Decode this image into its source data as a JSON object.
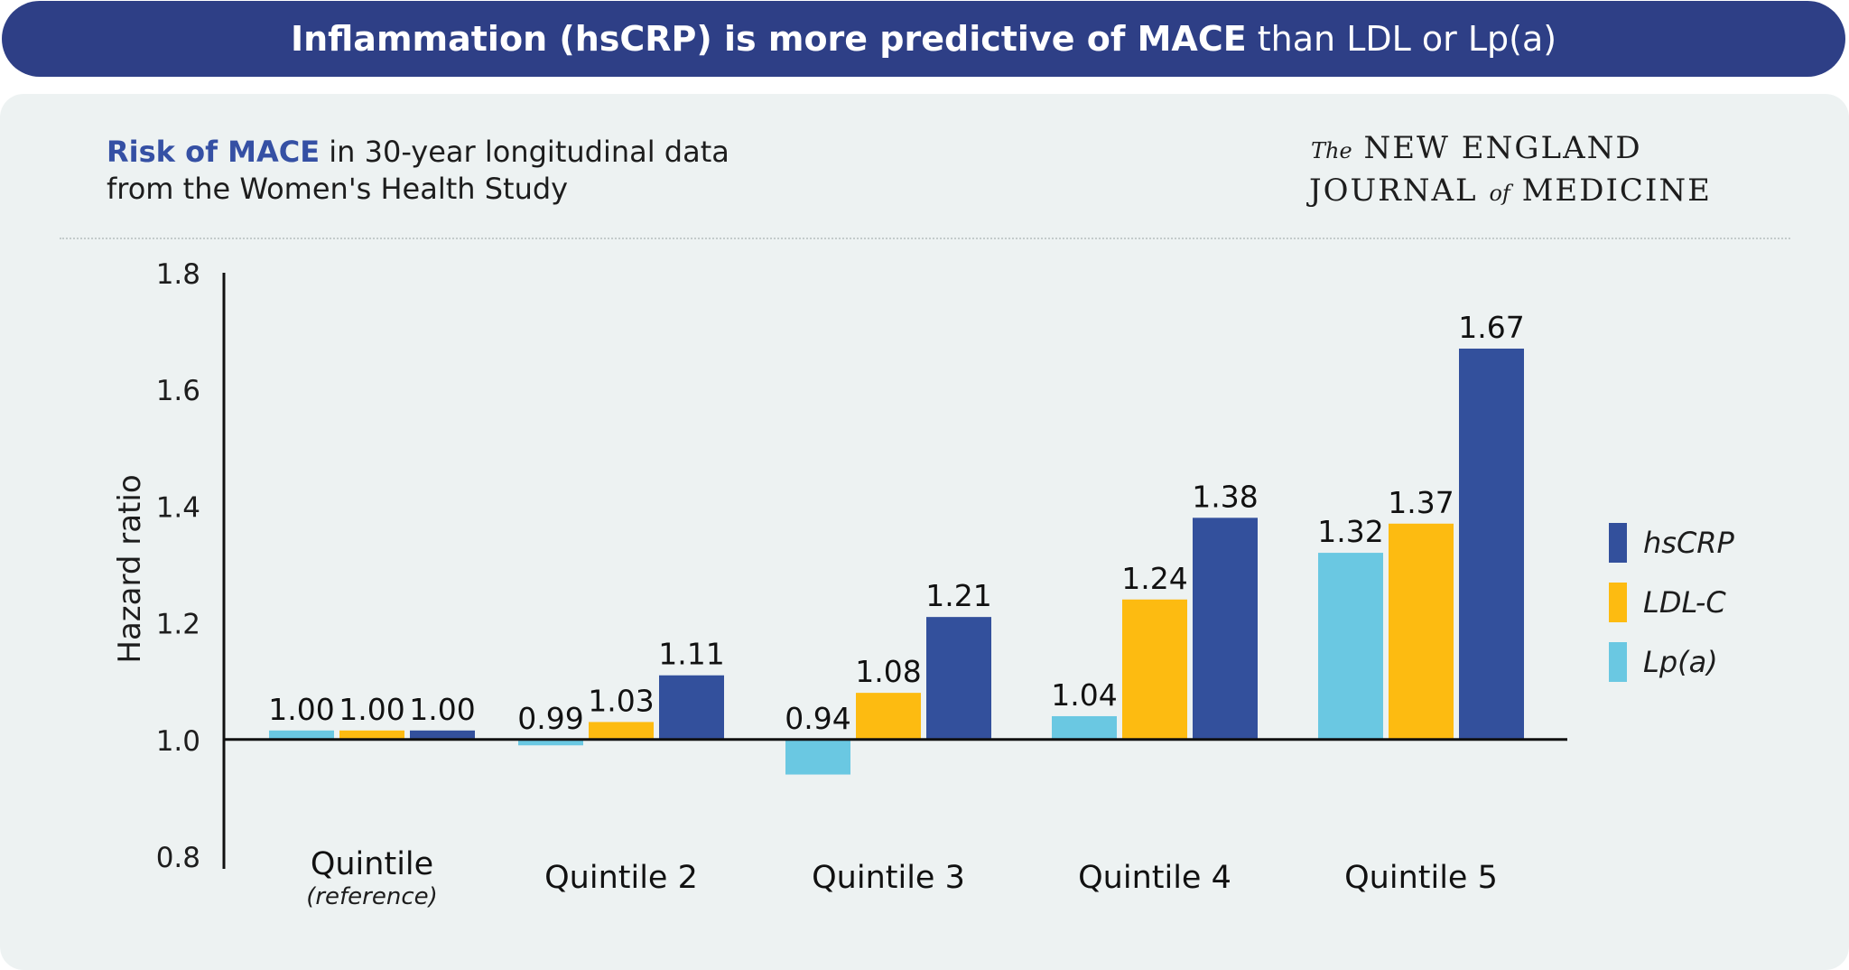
{
  "header": {
    "title_bold": "Inflammation (hsCRP) is more predictive of MACE",
    "title_light": "than LDL or Lp(a)"
  },
  "subtitle": {
    "accent": "Risk of MACE",
    "rest_line1": " in 30-year longitudinal data",
    "line2": "from the Women's Health Study"
  },
  "journal": {
    "the": "The",
    "line1": "NEW ENGLAND",
    "line2_a": "JOURNAL",
    "of": "of",
    "line2_b": "MEDICINE"
  },
  "colors": {
    "hsCRP": "#33509c",
    "LDL-C": "#fdbb11",
    "Lp(a)": "#6ac8e2"
  },
  "chart_data": {
    "type": "bar",
    "ylabel": "Hazard ratio",
    "ylim": [
      0.8,
      1.8
    ],
    "yticks": [
      "0.8",
      "1.0",
      "1.2",
      "1.4",
      "1.6",
      "1.8"
    ],
    "baseline": 1.0,
    "categories": [
      "Quintile",
      "Quintile 2",
      "Quintile 3",
      "Quintile 4",
      "Quintile 5"
    ],
    "category_sublabels": [
      "(reference)",
      "",
      "",
      "",
      ""
    ],
    "series": [
      {
        "name": "Lp(a)",
        "values": [
          1.0,
          0.99,
          0.94,
          1.04,
          1.32
        ],
        "labels": [
          "1.00",
          "0.99",
          "0.94",
          "1.04",
          "1.32"
        ]
      },
      {
        "name": "LDL-C",
        "values": [
          1.0,
          1.03,
          1.08,
          1.24,
          1.37
        ],
        "labels": [
          "1.00",
          "1.03",
          "1.08",
          "1.24",
          "1.37"
        ]
      },
      {
        "name": "hsCRP",
        "values": [
          1.0,
          1.11,
          1.21,
          1.38,
          1.67
        ],
        "labels": [
          "1.00",
          "1.11",
          "1.21",
          "1.38",
          "1.67"
        ]
      }
    ],
    "legend": [
      "hsCRP",
      "LDL-C",
      "Lp(a)"
    ],
    "legend_position": "right"
  }
}
